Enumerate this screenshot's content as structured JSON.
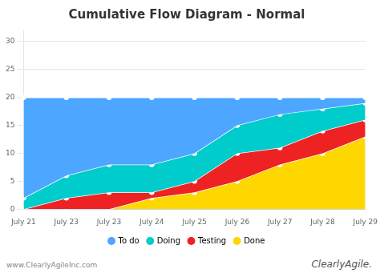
{
  "chart_data": {
    "type": "area",
    "title": "Cumulative Flow Diagram - Normal",
    "categories": [
      "July 21",
      "July 23",
      "July 23",
      "July 24",
      "July 25",
      "July 26",
      "July 27",
      "July 28",
      "July 29"
    ],
    "series": [
      {
        "name": "To do",
        "color": "#4DA6FF",
        "marker": "circle",
        "values": [
          20,
          20,
          20,
          20,
          20,
          20,
          20,
          20,
          20
        ]
      },
      {
        "name": "Doing",
        "color": "#00CCCC",
        "marker": "circle",
        "values": [
          2,
          6,
          8,
          8,
          10,
          15,
          17,
          18,
          19
        ]
      },
      {
        "name": "Testing",
        "color": "#EE2222",
        "marker": "circle",
        "values": [
          0,
          2,
          3,
          3,
          5,
          10,
          11,
          14,
          16
        ]
      },
      {
        "name": "Done",
        "color": "#FFD700",
        "marker": "circle",
        "values": [
          0,
          0,
          0,
          2,
          3,
          5,
          8,
          10,
          13
        ]
      }
    ],
    "ylim": [
      0,
      32
    ],
    "yticks": [
      0,
      5,
      10,
      15,
      20,
      25,
      30
    ],
    "grid": true,
    "legend": "bottom",
    "annotations": [
      "www.ClearlyAgileInc.com",
      "ClearlyAgile."
    ]
  }
}
